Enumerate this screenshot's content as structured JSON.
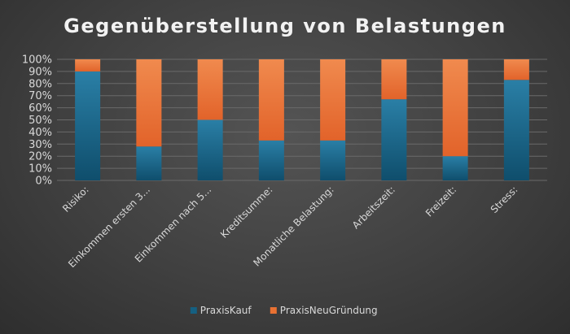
{
  "chart_data": {
    "type": "bar",
    "stacked": true,
    "percent_stacked": true,
    "title": "Gegenüberstellung von Belastungen",
    "categories": [
      "Risiko:",
      "Einkommen ersten 3...",
      "Einkommen nach 5...",
      "Kreditsumme:",
      "Monatliche Belastung:",
      "Arbeitszeit:",
      "Freizeit:",
      "Stress:"
    ],
    "series": [
      {
        "name": "PraxisKauf",
        "values": [
          90,
          28,
          50,
          33,
          33,
          67,
          20,
          83
        ]
      },
      {
        "name": "PraxisNeuGründung",
        "values": [
          10,
          72,
          50,
          67,
          67,
          33,
          80,
          17
        ]
      }
    ],
    "y_ticks": [
      "0%",
      "10%",
      "20%",
      "30%",
      "40%",
      "50%",
      "60%",
      "70%",
      "80%",
      "90%",
      "100%"
    ],
    "ylim": [
      0,
      100
    ],
    "grid": true,
    "legend": "bottom-center",
    "colors": {
      "PraxisKauf": "#156082",
      "PraxisNeuGründung": "#e97132"
    }
  }
}
